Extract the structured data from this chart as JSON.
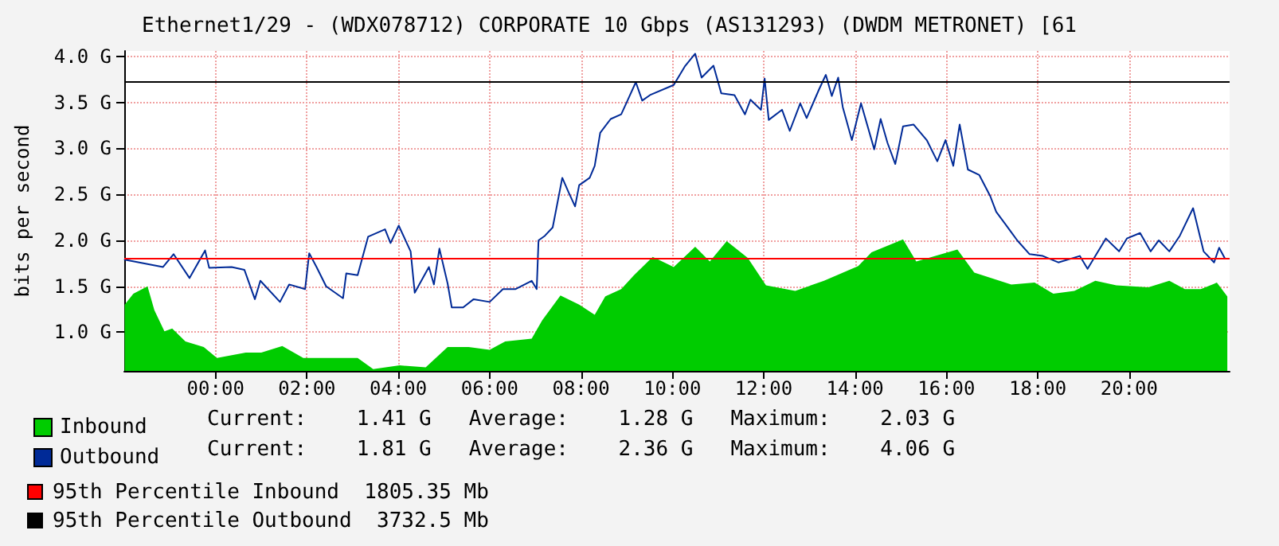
{
  "chart_data": {
    "type": "area",
    "title": "Ethernet1/29 - (WDX078712) CORPORATE 10 Gbps (AS131293) (DWDM METRONET) [61",
    "ylabel": "bits per second",
    "xlim": [
      -2,
      22.2
    ],
    "xticks": [
      {
        "value": 0,
        "label": "00:00"
      },
      {
        "value": 2,
        "label": "02:00"
      },
      {
        "value": 4,
        "label": "04:00"
      },
      {
        "value": 6,
        "label": "06:00"
      },
      {
        "value": 8,
        "label": "08:00"
      },
      {
        "value": 10,
        "label": "10:00"
      },
      {
        "value": 12,
        "label": "12:00"
      },
      {
        "value": 14,
        "label": "14:00"
      },
      {
        "value": 16,
        "label": "16:00"
      },
      {
        "value": 18,
        "label": "18:00"
      },
      {
        "value": 20,
        "label": "20:00"
      }
    ],
    "ylim": [
      0.58,
      4.06
    ],
    "yticks": [
      {
        "value": 1,
        "label": "1.0 G"
      },
      {
        "value": 1.5,
        "label": "1.5 G"
      },
      {
        "value": 2,
        "label": "2.0 G"
      },
      {
        "value": 2.5,
        "label": "2.5 G"
      },
      {
        "value": 3,
        "label": "3.0 G"
      },
      {
        "value": 3.5,
        "label": "3.5 G"
      },
      {
        "value": 4,
        "label": "4.0 G"
      }
    ],
    "grid": true,
    "legend": "bottom",
    "marker": "none",
    "series": [
      {
        "name": "Inbound",
        "color": "#00cc00",
        "x": [
          -1.99,
          -1.8,
          -1.49,
          -1.34,
          -1.12,
          -0.95,
          -0.66,
          -0.26,
          0.03,
          0.66,
          1.0,
          1.46,
          1.92,
          2.38,
          3.11,
          3.45,
          4.03,
          4.6,
          5.08,
          5.54,
          6.0,
          6.34,
          6.92,
          7.15,
          7.55,
          7.96,
          8.3,
          8.53,
          8.88,
          9.16,
          9.57,
          10.03,
          10.5,
          10.82,
          11.19,
          11.65,
          12.05,
          12.69,
          13.32,
          14.07,
          14.36,
          15.05,
          15.34,
          16.24,
          16.61,
          17.42,
          17.93,
          18.34,
          18.8,
          19.26,
          19.72,
          20.42,
          20.88,
          21.22,
          21.57,
          21.92,
          22.15
        ],
        "values": [
          1.3,
          1.42,
          1.5,
          1.24,
          1.01,
          1.04,
          0.9,
          0.84,
          0.72,
          0.78,
          0.78,
          0.85,
          0.72,
          0.72,
          0.72,
          0.6,
          0.64,
          0.62,
          0.84,
          0.84,
          0.81,
          0.9,
          0.93,
          1.13,
          1.4,
          1.3,
          1.19,
          1.39,
          1.47,
          1.62,
          1.82,
          1.71,
          1.93,
          1.77,
          1.99,
          1.81,
          1.51,
          1.45,
          1.56,
          1.72,
          1.87,
          2.01,
          1.77,
          1.9,
          1.65,
          1.52,
          1.54,
          1.42,
          1.45,
          1.56,
          1.51,
          1.49,
          1.56,
          1.47,
          1.47,
          1.54,
          1.39
        ]
      },
      {
        "name": "Outbound",
        "type": "line",
        "color": "#002a97",
        "x": [
          -1.99,
          -1.15,
          -0.92,
          -0.57,
          -0.23,
          -0.14,
          0.35,
          0.63,
          0.86,
          0.98,
          1.41,
          1.61,
          1.96,
          2.05,
          2.21,
          2.42,
          2.79,
          2.86,
          3.11,
          3.34,
          3.71,
          3.83,
          4.01,
          4.27,
          4.36,
          4.67,
          4.78,
          4.9,
          5.08,
          5.17,
          5.42,
          5.65,
          6.0,
          6.29,
          6.57,
          6.92,
          7.03,
          7.07,
          7.21,
          7.38,
          7.59,
          7.73,
          7.87,
          7.96,
          8.19,
          8.3,
          8.42,
          8.65,
          8.88,
          9.0,
          9.2,
          9.34,
          9.51,
          10.03,
          10.27,
          10.5,
          10.64,
          10.9,
          11.07,
          11.36,
          11.59,
          11.71,
          11.94,
          12.02,
          12.11,
          12.4,
          12.57,
          12.8,
          12.94,
          13.21,
          13.36,
          13.49,
          13.63,
          13.73,
          13.93,
          14.13,
          14.42,
          14.56,
          14.71,
          14.88,
          15.05,
          15.28,
          15.57,
          15.8,
          15.98,
          16.15,
          16.29,
          16.47,
          16.72,
          16.96,
          17.09,
          17.3,
          17.55,
          17.82,
          18.11,
          18.45,
          18.92,
          19.09,
          19.49,
          19.78,
          19.95,
          20.24,
          20.47,
          20.65,
          20.88,
          21.11,
          21.4,
          21.63,
          21.86,
          21.97,
          22.09
        ],
        "values": [
          1.79,
          1.71,
          1.85,
          1.59,
          1.89,
          1.7,
          1.71,
          1.68,
          1.36,
          1.56,
          1.33,
          1.52,
          1.47,
          1.86,
          1.71,
          1.5,
          1.37,
          1.64,
          1.62,
          2.04,
          2.12,
          1.97,
          2.16,
          1.88,
          1.43,
          1.71,
          1.52,
          1.91,
          1.53,
          1.27,
          1.27,
          1.36,
          1.33,
          1.47,
          1.47,
          1.56,
          1.47,
          2.0,
          2.05,
          2.14,
          2.68,
          2.52,
          2.37,
          2.6,
          2.68,
          2.81,
          3.17,
          3.32,
          3.37,
          3.5,
          3.72,
          3.52,
          3.58,
          3.69,
          3.89,
          4.03,
          3.77,
          3.9,
          3.6,
          3.58,
          3.37,
          3.53,
          3.42,
          3.76,
          3.31,
          3.42,
          3.19,
          3.49,
          3.33,
          3.64,
          3.8,
          3.57,
          3.77,
          3.45,
          3.09,
          3.49,
          2.99,
          3.32,
          3.06,
          2.83,
          3.24,
          3.26,
          3.09,
          2.86,
          3.09,
          2.81,
          3.26,
          2.77,
          2.71,
          2.48,
          2.31,
          2.17,
          2.0,
          1.85,
          1.83,
          1.76,
          1.83,
          1.69,
          2.02,
          1.88,
          2.02,
          2.08,
          1.88,
          2.0,
          1.88,
          2.05,
          2.35,
          1.88,
          1.76,
          1.92,
          1.81
        ]
      }
    ],
    "ref_lines": [
      {
        "axis": "y",
        "value": 1.80535,
        "label": "95th Percentile Inbound  1805.35 Mb",
        "color": "#ff0000"
      },
      {
        "axis": "y",
        "value": 3.7325,
        "label": "95th Percentile Outbound  3732.5 Mb",
        "color": "#000000"
      }
    ],
    "annotations": [
      "Current:    1.41 G   Average:    1.28 G   Maximum:    2.03 G",
      "Current:    1.81 G   Average:    2.36 G   Maximum:    4.06 G"
    ]
  }
}
